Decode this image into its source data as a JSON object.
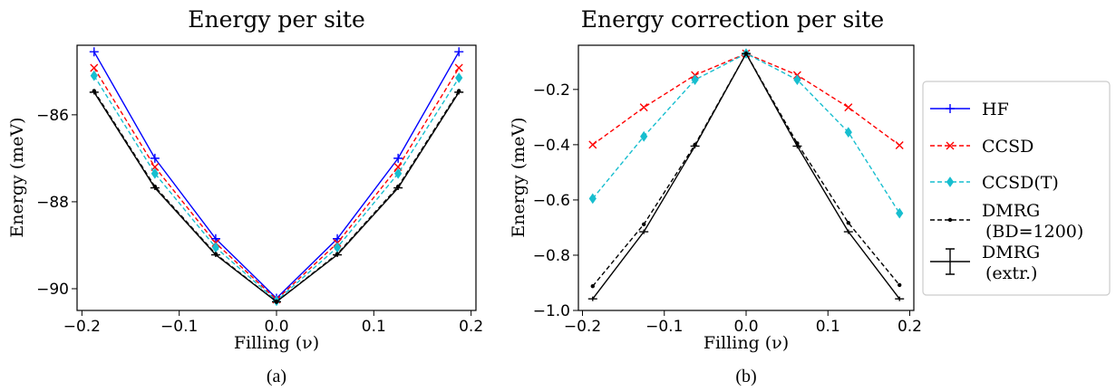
{
  "chart_data": [
    {
      "type": "line",
      "title": "Energy per site",
      "xlabel": "Filling (ν)",
      "ylabel": "Energy (meV)",
      "caption": "(a)",
      "x": [
        -0.1875,
        -0.125,
        -0.0625,
        0.0,
        0.0625,
        0.125,
        0.1875
      ],
      "xlim": [
        -0.205,
        0.205
      ],
      "ylim": [
        -90.5,
        -84.4
      ],
      "xticks": [
        -0.2,
        -0.1,
        0.0,
        0.1,
        0.2
      ],
      "xtick_labels": [
        "−0.2",
        "−0.1",
        "0.0",
        "0.1",
        "0.2"
      ],
      "yticks": [
        -90,
        -88,
        -86
      ],
      "ytick_labels": [
        "−90",
        "−88",
        "−86"
      ],
      "series": [
        {
          "name": "HF",
          "color": "#0000ff",
          "dash": "solid",
          "marker": "plus",
          "values": [
            -84.55,
            -87.0,
            -88.85,
            -90.22,
            -88.85,
            -87.0,
            -84.55
          ]
        },
        {
          "name": "CCSD",
          "color": "#ff0000",
          "dash": "dashed",
          "marker": "x",
          "values": [
            -84.92,
            -87.2,
            -88.95,
            -90.25,
            -88.95,
            -87.2,
            -84.92
          ]
        },
        {
          "name": "CCSD(T)",
          "color": "#17becf",
          "dash": "dashed",
          "marker": "diamond",
          "values": [
            -85.1,
            -87.35,
            -89.05,
            -90.28,
            -89.05,
            -87.35,
            -85.15
          ]
        },
        {
          "name": "DMRG\n(BD=1200)",
          "color": "#000000",
          "dash": "dashed",
          "marker": "dot",
          "values": [
            -85.45,
            -87.65,
            -89.2,
            -90.3,
            -89.2,
            -87.65,
            -85.45
          ]
        },
        {
          "name": "DMRG\n(extr.)",
          "color": "#000000",
          "dash": "solid",
          "marker": "errorbar",
          "values": [
            -85.48,
            -87.68,
            -89.22,
            -90.3,
            -89.22,
            -87.68,
            -85.48
          ]
        }
      ]
    },
    {
      "type": "line",
      "title": "Energy correction per site",
      "xlabel": "Filling (ν)",
      "ylabel": "Energy (meV)",
      "caption": "(b)",
      "x": [
        -0.1875,
        -0.125,
        -0.0625,
        0.0,
        0.0625,
        0.125,
        0.1875
      ],
      "xlim": [
        -0.205,
        0.205
      ],
      "ylim": [
        -1.0,
        -0.04
      ],
      "xticks": [
        -0.2,
        -0.1,
        0.0,
        0.1,
        0.2
      ],
      "xtick_labels": [
        "−0.2",
        "−0.1",
        "0.0",
        "0.1",
        "0.2"
      ],
      "yticks": [
        -1.0,
        -0.8,
        -0.6,
        -0.4,
        -0.2
      ],
      "ytick_labels": [
        "−1.0",
        "−0.8",
        "−0.6",
        "−0.4",
        "−0.2"
      ],
      "series": [
        {
          "name": "CCSD",
          "color": "#ff0000",
          "dash": "dashed",
          "marker": "x",
          "values": [
            -0.4,
            -0.265,
            -0.148,
            -0.07,
            -0.148,
            -0.265,
            -0.402
          ]
        },
        {
          "name": "CCSD(T)",
          "color": "#17becf",
          "dash": "dashed",
          "marker": "diamond",
          "values": [
            -0.595,
            -0.37,
            -0.165,
            -0.07,
            -0.165,
            -0.355,
            -0.648
          ]
        },
        {
          "name": "DMRG\n(BD=1200)",
          "color": "#000000",
          "dash": "dashed",
          "marker": "dot",
          "values": [
            -0.912,
            -0.688,
            -0.4,
            -0.07,
            -0.395,
            -0.683,
            -0.908
          ]
        },
        {
          "name": "DMRG\n(extr.)",
          "color": "#000000",
          "dash": "solid",
          "marker": "errorbar",
          "values": [
            -0.958,
            -0.715,
            -0.405,
            -0.07,
            -0.405,
            -0.715,
            -0.958
          ]
        }
      ]
    }
  ],
  "legend": {
    "placement": "right",
    "entries": [
      {
        "line1": "HF",
        "line2": "",
        "color": "#0000ff",
        "dash": "solid",
        "marker": "plus"
      },
      {
        "line1": "CCSD",
        "line2": "",
        "color": "#ff0000",
        "dash": "dashed",
        "marker": "x"
      },
      {
        "line1": "CCSD(T)",
        "line2": "",
        "color": "#17becf",
        "dash": "dashed",
        "marker": "diamond"
      },
      {
        "line1": "DMRG",
        "line2": "(BD=1200)",
        "color": "#000000",
        "dash": "dashed",
        "marker": "dot"
      },
      {
        "line1": "DMRG",
        "line2": "(extr.)",
        "color": "#000000",
        "dash": "solid",
        "marker": "errorbar"
      }
    ]
  }
}
